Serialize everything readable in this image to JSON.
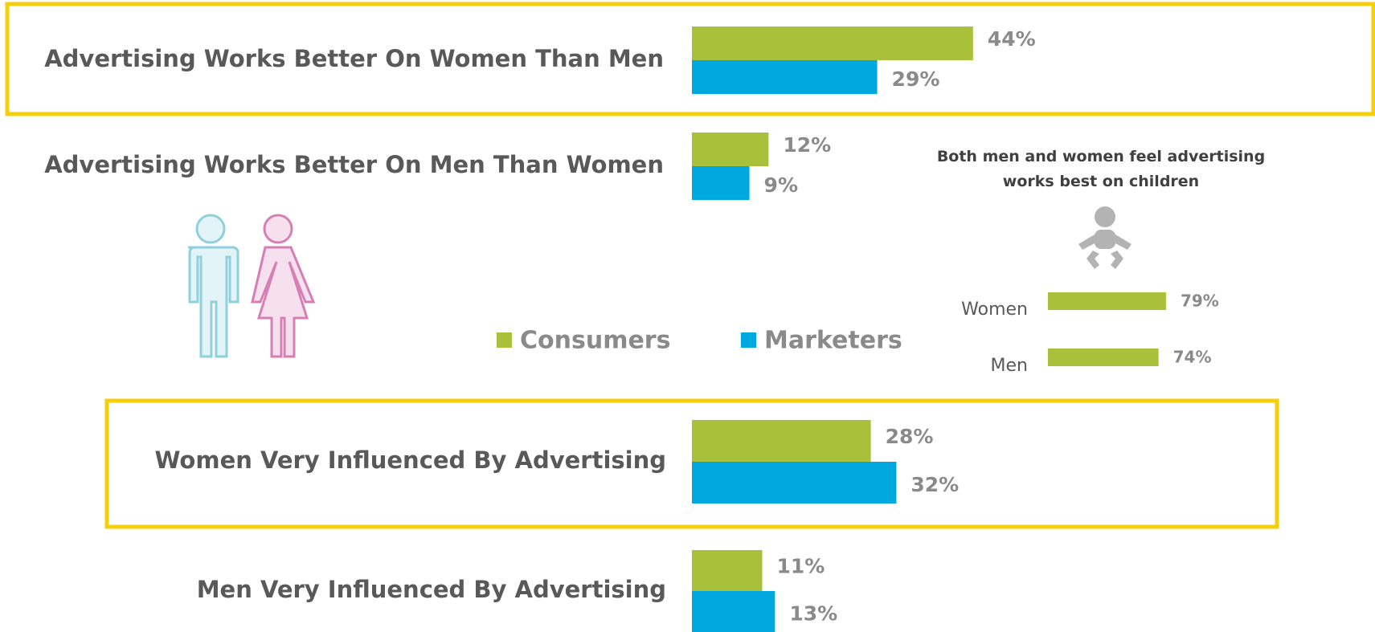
{
  "chart_data": [
    {
      "type": "bar",
      "categories": [
        "Advertising Works Better On Women Than Men",
        "Advertising Works Better On Men Than Women",
        "Women Very Influenced By Advertising",
        "Men Very Influenced By Advertising"
      ],
      "series": [
        {
          "name": "Consumers",
          "color": "#a9c03a",
          "values": [
            44,
            12,
            28,
            11
          ],
          "value_labels": [
            "44%",
            "12%",
            "28%",
            "11%"
          ]
        },
        {
          "name": "Marketers",
          "color": "#00a8e0",
          "values": [
            29,
            9,
            32,
            13
          ],
          "value_labels": [
            "29%",
            "9%",
            "32%",
            "13%"
          ]
        }
      ]
    },
    {
      "type": "bar",
      "title": "Both men and women feel advertising works best on children",
      "categories": [
        "Women",
        "Men"
      ],
      "values": [
        79,
        74
      ],
      "value_labels": [
        "79%",
        "74%"
      ],
      "color": "#a9c03a"
    }
  ]
}
